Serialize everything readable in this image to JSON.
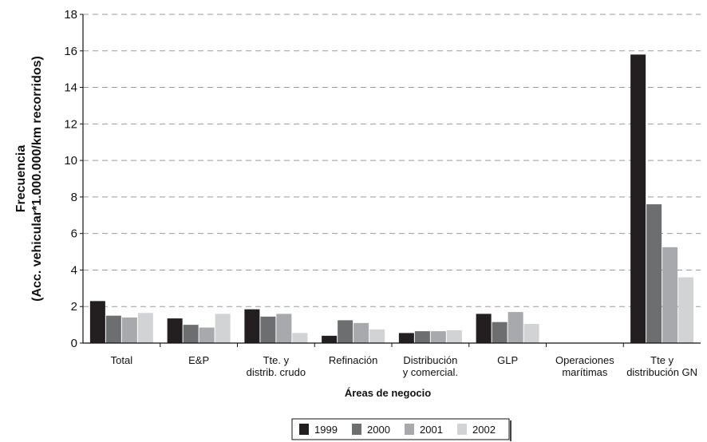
{
  "chart_data": {
    "type": "bar",
    "title": "",
    "xlabel": "Áreas de negocio",
    "ylabel_lines": [
      "Frecuencia",
      "(Acc. vehicular*1.000.000/km recorridos)"
    ],
    "ylim": [
      0,
      18
    ],
    "yticks": [
      0,
      2,
      4,
      6,
      8,
      10,
      12,
      14,
      16,
      18
    ],
    "grid": "horizontal dashed",
    "legend_position": "bottom",
    "categories": [
      [
        "Total"
      ],
      [
        "E&P"
      ],
      [
        "Tte. y",
        "distrib. crudo"
      ],
      [
        "Refinación"
      ],
      [
        "Distribución",
        "y comercial."
      ],
      [
        "GLP"
      ],
      [
        "Operaciones",
        "marítimas"
      ],
      [
        "Tte y",
        "distribución GN"
      ]
    ],
    "series": [
      {
        "name": "1999",
        "color": "#231f20",
        "values": [
          2.3,
          1.35,
          1.85,
          0.4,
          0.55,
          1.6,
          0,
          15.8
        ]
      },
      {
        "name": "2000",
        "color": "#6d6e70",
        "values": [
          1.5,
          1.0,
          1.45,
          1.25,
          0.65,
          1.15,
          0,
          7.6
        ]
      },
      {
        "name": "2001",
        "color": "#a7a9ac",
        "values": [
          1.4,
          0.85,
          1.6,
          1.1,
          0.65,
          1.7,
          0,
          5.25
        ]
      },
      {
        "name": "2002",
        "color": "#d1d3d4",
        "values": [
          1.65,
          1.6,
          0.55,
          0.75,
          0.7,
          1.05,
          0,
          3.6
        ]
      }
    ]
  }
}
